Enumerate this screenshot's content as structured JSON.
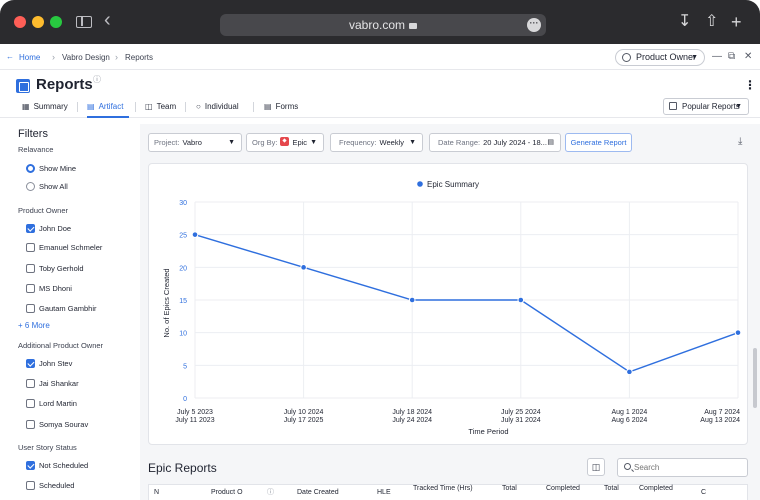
{
  "browser": {
    "url": "vabro.com"
  },
  "breadcrumb": [
    "Home",
    "Vabro Design",
    "Reports"
  ],
  "role_select": {
    "value": "Product Owner"
  },
  "page": {
    "title": "Reports"
  },
  "tabs": [
    {
      "label": "Summary",
      "active": false
    },
    {
      "label": "Artifact",
      "active": true
    },
    {
      "label": "Team",
      "active": false
    },
    {
      "label": "Individual",
      "active": false
    },
    {
      "label": "Forms",
      "active": false
    }
  ],
  "popular_reports": "Popular Reports",
  "filters": {
    "title": "Filters",
    "relevance": {
      "label": "Relavance",
      "options": [
        {
          "label": "Show Mine",
          "selected": true
        },
        {
          "label": "Show All",
          "selected": false
        }
      ]
    },
    "product_owner": {
      "label": "Product Owner",
      "items": [
        {
          "label": "John Doe",
          "checked": true
        },
        {
          "label": "Emanuel Schmeler",
          "checked": false
        },
        {
          "label": "Toby Gerhold",
          "checked": false
        },
        {
          "label": "MS Dhoni",
          "checked": false
        },
        {
          "label": "Gautam Gambhir",
          "checked": false
        }
      ],
      "more": "+ 6 More"
    },
    "additional_product_owner": {
      "label": "Additional Product Owner",
      "items": [
        {
          "label": "John Stev",
          "checked": true
        },
        {
          "label": "Jai Shankar",
          "checked": false
        },
        {
          "label": "Lord Martin",
          "checked": false
        },
        {
          "label": "Somya Sourav",
          "checked": false
        }
      ]
    },
    "user_story_status": {
      "label": "User Story Status",
      "items": [
        {
          "label": "Not Scheduled",
          "checked": true
        },
        {
          "label": "Scheduled",
          "checked": false
        }
      ]
    }
  },
  "controls": {
    "project": {
      "label": "Project:",
      "value": "Vabro"
    },
    "org_by": {
      "label": "Org By:",
      "value": "Epic"
    },
    "frequency": {
      "label": "Frequency:",
      "value": "Weekly"
    },
    "date_range": {
      "label": "Date Range:",
      "value": "20 July 2024 - 18..."
    },
    "generate": "Generate Report"
  },
  "chart_data": {
    "type": "line",
    "title": "",
    "series": [
      {
        "name": "Epic Summary",
        "values": [
          25,
          20,
          15,
          15,
          4,
          10
        ],
        "color": "#2f6fde"
      }
    ],
    "categories": [
      [
        "July 5 2023",
        "July 11 2023"
      ],
      [
        "July 10 2024",
        "July 17 2025"
      ],
      [
        "July 18 2024",
        "July 24 2024"
      ],
      [
        "July 25 2024",
        "July 31 2024"
      ],
      [
        "Aug 1 2024",
        "Aug 6 2024"
      ],
      [
        "Aug 7 2024",
        "Aug 13 2024"
      ]
    ],
    "xlabel": "Time Period",
    "ylabel": "No. of Epics Created",
    "ylim": [
      0,
      30
    ],
    "yticks": [
      0,
      5,
      10,
      15,
      20,
      25,
      30
    ],
    "legend": "top-center",
    "grid": true
  },
  "epic_reports": {
    "title": "Epic Reports",
    "search_placeholder": "Search",
    "columns": [
      "N",
      "Product O",
      "Date Created",
      "HLE",
      "Tracked Time (Hrs)",
      "Total",
      "Completed",
      "Total",
      "Completed",
      "C"
    ]
  }
}
